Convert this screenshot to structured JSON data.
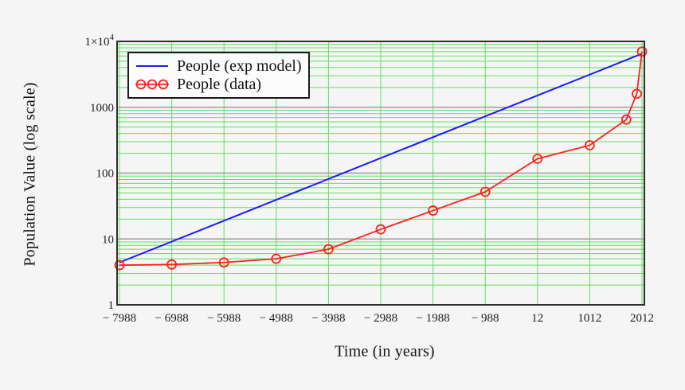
{
  "colors": {
    "background": "#f5f5f5",
    "plot_frame": "#2d2d2d",
    "minor_grid": "#5ee05e",
    "major_grid": "#9c9c9c",
    "model_line": "#1a1aff",
    "data_line": "#ff1f1f",
    "legend_border": "#1a1a1a",
    "legend_bg": "#fcfcfc",
    "text": "#141414"
  },
  "chart_data": {
    "type": "line",
    "title": "",
    "xlabel": "Time (in years)",
    "ylabel": "Population Value (log scale)",
    "x_axis": {
      "min": -7988,
      "max": 2012,
      "tick_values": [
        -7988,
        -6988,
        -5988,
        -4988,
        -3988,
        -2988,
        -1988,
        -988,
        12,
        1012,
        2012
      ],
      "tick_labels": [
        "− 7988",
        "− 6988",
        "− 5988",
        "− 4988",
        "− 3988",
        "− 2988",
        "− 1988",
        "− 988",
        "12",
        "1012",
        "2012"
      ]
    },
    "y_axis": {
      "scale": "log",
      "min": 1,
      "max": 10000,
      "ticks": [
        {
          "text": "1×10",
          "sup": "4",
          "value": 10000
        },
        {
          "text": "1000",
          "sup": "",
          "value": 1000
        },
        {
          "text": "100",
          "sup": "",
          "value": 100
        },
        {
          "text": "10",
          "sup": "",
          "value": 10
        },
        {
          "text": "1",
          "sup": "",
          "value": 1
        }
      ]
    },
    "grid": {
      "minor": true,
      "major": true
    },
    "legend": {
      "position": "top-left-inside"
    },
    "series": [
      {
        "name": "People (exp model)",
        "color": "#1a1aff",
        "style": "line",
        "x": [
          -7988,
          2012
        ],
        "values": [
          4.4,
          6500
        ]
      },
      {
        "name": "People (data)",
        "color": "#ff1f1f",
        "style": "line-markers",
        "marker": "open-circle",
        "x": [
          -7988,
          -6988,
          -5988,
          -4988,
          -3988,
          -2988,
          -1988,
          -988,
          12,
          1012,
          1712,
          1912,
          2012
        ],
        "values": [
          4,
          4.1,
          4.4,
          5,
          7,
          14,
          27,
          52,
          165,
          265,
          650,
          1600,
          7000
        ]
      }
    ]
  }
}
